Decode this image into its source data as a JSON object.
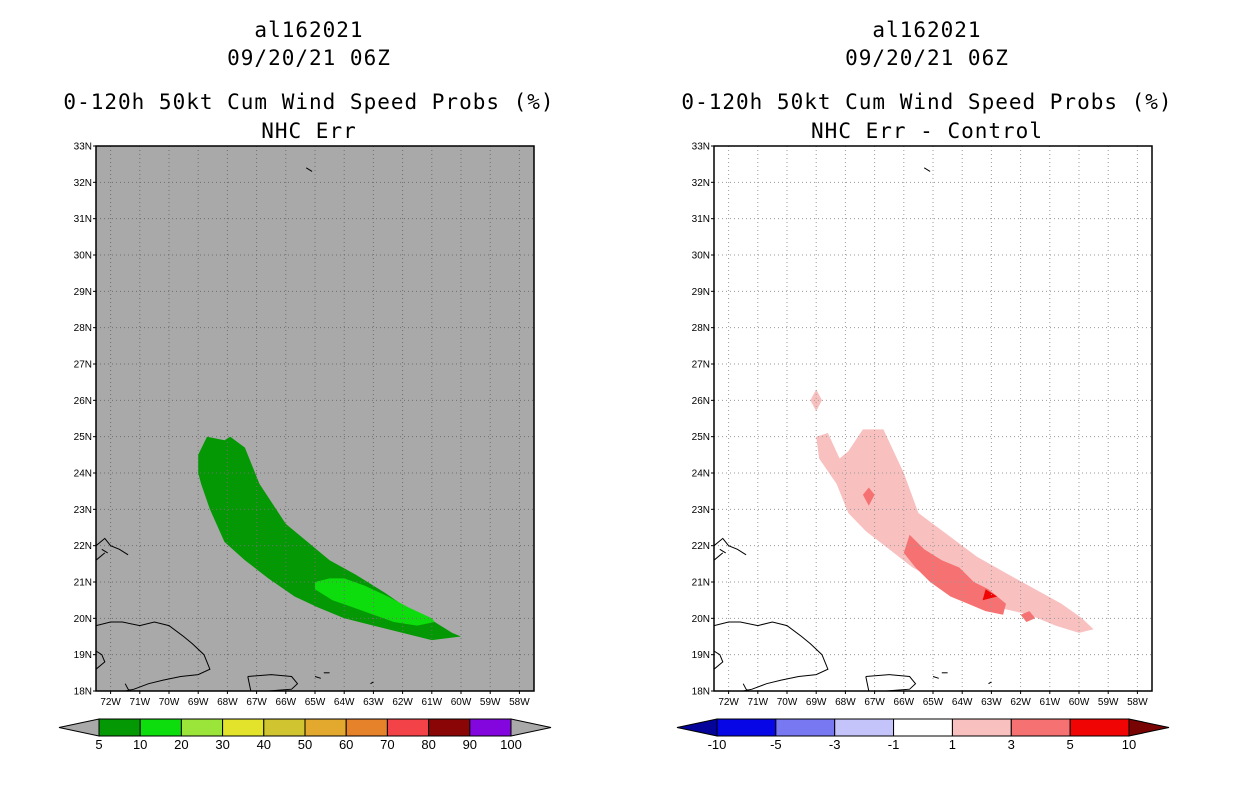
{
  "chart_data": [
    {
      "type": "heatmap",
      "storm_id": "al162021",
      "datetime": "09/20/21 06Z",
      "title": "0-120h 50kt Cum Wind Speed Probs (%)",
      "subtitle": "NHC Err",
      "x_ticks": [
        "72W",
        "71W",
        "70W",
        "69W",
        "68W",
        "67W",
        "66W",
        "65W",
        "64W",
        "63W",
        "62W",
        "61W",
        "60W",
        "59W",
        "58W"
      ],
      "y_ticks": [
        "18N",
        "19N",
        "20N",
        "21N",
        "22N",
        "23N",
        "24N",
        "25N",
        "26N",
        "27N",
        "28N",
        "29N",
        "30N",
        "31N",
        "32N",
        "33N"
      ],
      "xlim": [
        -72.5,
        -57.5
      ],
      "ylim": [
        18,
        33
      ],
      "background": "#a9a9a9",
      "grid": true,
      "colorbar": {
        "labels": [
          "5",
          "10",
          "20",
          "30",
          "40",
          "50",
          "60",
          "70",
          "80",
          "90",
          "100"
        ],
        "colors": [
          "#049804",
          "#0ddd0d",
          "#9be43a",
          "#e3e32c",
          "#d1c431",
          "#e2a92e",
          "#e6822a",
          "#f44249",
          "#8a0606",
          "#8206dd"
        ],
        "low_color": "#a9a9a9",
        "high_color": "#a9a9a9"
      },
      "contours": [
        {
          "level": "5-10%",
          "color": "#049804",
          "lon": [
            -69.0,
            -68.7,
            -68.1,
            -67.9,
            -67.4,
            -66.9,
            -66.0,
            -65.4,
            -64.5,
            -63.6,
            -62.6,
            -61.7,
            -60.9,
            -60.5,
            -60.3,
            -60.0,
            -61.0,
            -62.0,
            -63.0,
            -64.0,
            -64.9,
            -65.7,
            -66.6,
            -67.4,
            -68.1,
            -68.6,
            -68.9,
            -69.0,
            -69.0
          ],
          "lat": [
            24.5,
            25.0,
            24.9,
            25.0,
            24.7,
            23.7,
            22.6,
            22.2,
            21.6,
            21.2,
            20.7,
            20.2,
            19.9,
            19.7,
            19.6,
            19.5,
            19.4,
            19.6,
            19.8,
            20.0,
            20.3,
            20.6,
            21.1,
            21.6,
            22.1,
            23.0,
            23.7,
            24.0,
            24.5
          ]
        },
        {
          "level": "10-20%",
          "color": "#0ddd0d",
          "lon": [
            -65.0,
            -64.5,
            -64.0,
            -63.3,
            -62.5,
            -61.8,
            -61.0,
            -60.9,
            -61.5,
            -62.3,
            -63.0,
            -63.7,
            -64.4,
            -65.0,
            -65.0
          ],
          "lat": [
            21.0,
            21.1,
            21.1,
            20.9,
            20.6,
            20.3,
            20.0,
            19.9,
            19.8,
            19.9,
            20.1,
            20.3,
            20.5,
            20.8,
            21.0
          ]
        }
      ]
    },
    {
      "type": "heatmap",
      "storm_id": "al162021",
      "datetime": "09/20/21 06Z",
      "title": "0-120h 50kt Cum Wind Speed Probs (%)",
      "subtitle": "NHC Err - Control",
      "x_ticks": [
        "72W",
        "71W",
        "70W",
        "69W",
        "68W",
        "67W",
        "66W",
        "65W",
        "64W",
        "63W",
        "62W",
        "61W",
        "60W",
        "59W",
        "58W"
      ],
      "y_ticks": [
        "18N",
        "19N",
        "20N",
        "21N",
        "22N",
        "23N",
        "24N",
        "25N",
        "26N",
        "27N",
        "28N",
        "29N",
        "30N",
        "31N",
        "32N",
        "33N"
      ],
      "xlim": [
        -72.5,
        -57.5
      ],
      "ylim": [
        18,
        33
      ],
      "background": "#ffffff",
      "grid": true,
      "colorbar": {
        "labels": [
          "-10",
          "-5",
          "-3",
          "-1",
          "1",
          "3",
          "5",
          "10"
        ],
        "colors": [
          "#0606e6",
          "#7878f3",
          "#c4c4fa",
          "#ffffff",
          "#f9c0c0",
          "#f67272",
          "#f00404"
        ],
        "low_color": "#04049a",
        "high_color": "#780404"
      },
      "contours": [
        {
          "level": "1-3",
          "color": "#f9c0c0",
          "lon": [
            -69.0,
            -68.6,
            -68.2,
            -67.9,
            -67.4,
            -66.7,
            -66.0,
            -65.5,
            -64.5,
            -63.5,
            -62.4,
            -61.5,
            -60.6,
            -59.9,
            -59.5,
            -60.0,
            -60.8,
            -61.7,
            -62.8,
            -63.8,
            -64.8,
            -65.7,
            -66.5,
            -67.3,
            -67.9,
            -68.3,
            -68.9,
            -69.0
          ],
          "lat": [
            25.0,
            25.1,
            24.4,
            24.6,
            25.2,
            25.2,
            24.0,
            22.9,
            22.3,
            21.7,
            21.2,
            20.8,
            20.4,
            20.0,
            19.7,
            19.6,
            19.8,
            20.1,
            20.3,
            20.6,
            21.0,
            21.4,
            21.9,
            22.4,
            22.9,
            23.7,
            24.4,
            25.0
          ]
        },
        {
          "level": "1-3 (isolated)",
          "color": "#f9c0c0",
          "lon": [
            -69.0,
            -68.8,
            -69.0,
            -69.2,
            -69.0
          ],
          "lat": [
            26.3,
            26.0,
            25.7,
            26.0,
            26.3
          ]
        },
        {
          "level": "3-5",
          "color": "#f67272",
          "lon": [
            -65.8,
            -65.3,
            -64.7,
            -64.1,
            -63.6,
            -63.1,
            -62.5,
            -62.6,
            -63.2,
            -63.8,
            -64.4,
            -65.1,
            -65.6,
            -66.0,
            -65.8
          ],
          "lat": [
            22.3,
            21.9,
            21.6,
            21.4,
            21.0,
            20.8,
            20.4,
            20.1,
            20.2,
            20.4,
            20.6,
            21.0,
            21.4,
            21.8,
            22.3
          ]
        },
        {
          "level": "3-5 (small)",
          "color": "#f67272",
          "lon": [
            -67.2,
            -67.0,
            -67.2,
            -67.4,
            -67.2
          ],
          "lat": [
            23.6,
            23.4,
            23.1,
            23.4,
            23.6
          ]
        },
        {
          "level": "3-5 (small)",
          "color": "#f67272",
          "lon": [
            -61.7,
            -61.5,
            -61.8,
            -62.0,
            -61.7
          ],
          "lat": [
            20.2,
            20.0,
            19.9,
            20.1,
            20.2
          ]
        },
        {
          "level": "5-10",
          "color": "#f00404",
          "lon": [
            -63.2,
            -62.8,
            -63.3,
            -63.2
          ],
          "lat": [
            20.8,
            20.6,
            20.5,
            20.8
          ]
        }
      ]
    }
  ]
}
